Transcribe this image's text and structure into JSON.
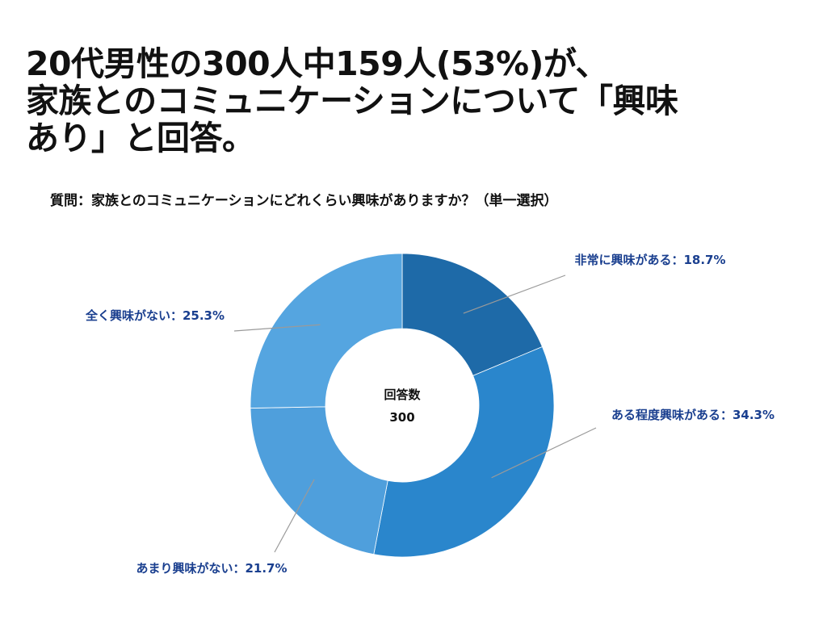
{
  "headline": {
    "line1": "20代男性の300人中159人(53%)が、",
    "line2": "家族とのコミュニケーションについて「興味",
    "line3": "あり」と回答。"
  },
  "question": "質問：家族とのコミュニケーションにどれくらい興味がありますか？（単一選択）",
  "chart_data": {
    "type": "pie",
    "donut": true,
    "center_label": "回答数",
    "center_value": "300",
    "slices": [
      {
        "label": "非常に興味がある：18.7%",
        "value": 18.7,
        "color": "#1e6aa8"
      },
      {
        "label": "ある程度興味がある：34.3%",
        "value": 34.3,
        "color": "#2a86cc"
      },
      {
        "label": "あまり興味がない：21.7%",
        "value": 21.7,
        "color": "#4f9fdc"
      },
      {
        "label": "全く興味がない：25.3%",
        "value": 25.3,
        "color": "#55a5e0"
      }
    ]
  }
}
